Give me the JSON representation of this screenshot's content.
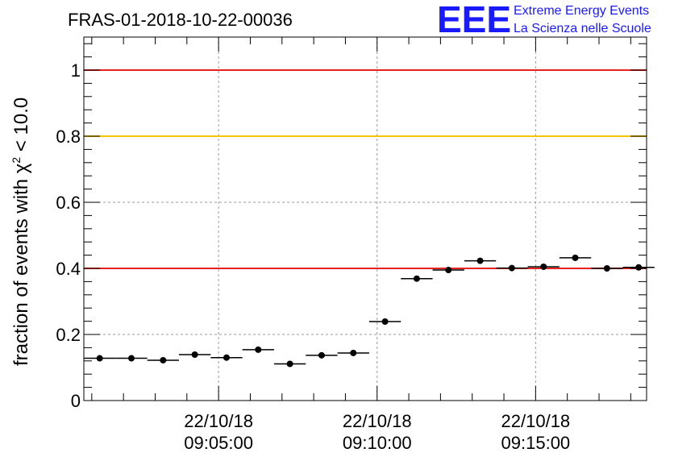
{
  "chart_data": {
    "type": "scatter",
    "title": "FRAS-01-2018-10-22-00036",
    "ylabel": "fraction of events with",
    "ylabel_symbol": "χ",
    "ylabel_superscript": "2",
    "ylabel_suffix": " < 10.0",
    "ylim": [
      0,
      1.1
    ],
    "xlim": [
      "22/10/18 09:00:45",
      "22/10/18 09:18:30"
    ],
    "x_tick_labels": [
      {
        "date": "22/10/18",
        "time": "09:05:00"
      },
      {
        "date": "22/10/18",
        "time": "09:10:00"
      },
      {
        "date": "22/10/18",
        "time": "09:15:00"
      }
    ],
    "y_tick_labels": [
      "0",
      "0.2",
      "0.4",
      "0.6",
      "0.8",
      "1"
    ],
    "grid": true,
    "reference_lines": [
      {
        "y": 1.0,
        "color": "#e8211d"
      },
      {
        "y": 0.8,
        "color": "#f5c400"
      },
      {
        "y": 0.4,
        "color": "#e8211d"
      }
    ],
    "series": [
      {
        "marker_color": "#000000",
        "points": [
          {
            "x": "09:01:15",
            "y": 0.128
          },
          {
            "x": "09:02:15",
            "y": 0.128
          },
          {
            "x": "09:03:15",
            "y": 0.122
          },
          {
            "x": "09:04:15",
            "y": 0.139
          },
          {
            "x": "09:05:15",
            "y": 0.13
          },
          {
            "x": "09:06:15",
            "y": 0.154
          },
          {
            "x": "09:07:15",
            "y": 0.111
          },
          {
            "x": "09:08:15",
            "y": 0.137
          },
          {
            "x": "09:09:15",
            "y": 0.144
          },
          {
            "x": "09:10:15",
            "y": 0.239
          },
          {
            "x": "09:11:15",
            "y": 0.369
          },
          {
            "x": "09:12:15",
            "y": 0.395
          },
          {
            "x": "09:13:15",
            "y": 0.423
          },
          {
            "x": "09:14:15",
            "y": 0.401
          },
          {
            "x": "09:15:15",
            "y": 0.405
          },
          {
            "x": "09:16:15",
            "y": 0.432
          },
          {
            "x": "09:17:15",
            "y": 0.4
          },
          {
            "x": "09:18:15",
            "y": 0.403
          }
        ]
      }
    ]
  },
  "logo": {
    "mark": "EEE",
    "line1": "Extreme Energy Events",
    "line2": "La Scienza nelle Scuole",
    "color": "#1a1aff"
  }
}
